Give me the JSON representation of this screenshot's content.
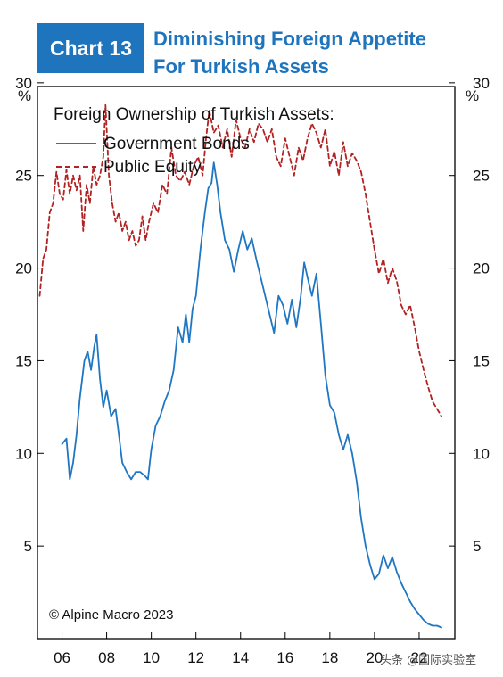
{
  "header": {
    "badge": "Chart 13",
    "title_line1": "Diminishing Foreign Appetite",
    "title_line2": "For Turkish Assets"
  },
  "colors": {
    "accent": "#1e74bd",
    "government_bonds": "#1f77c4",
    "public_equity": "#b22222"
  },
  "watermark": "头条 @国际实验室",
  "chart_data": {
    "type": "line",
    "title": "Foreign Ownership of Turkish Assets:",
    "unit_left": "%",
    "unit_right": "%",
    "xlabel": "",
    "ylabel": "",
    "xlim": [
      2004.9,
      2023.6
    ],
    "ylim": [
      0,
      29.8
    ],
    "y_ticks": [
      5,
      10,
      15,
      20,
      25,
      30
    ],
    "x_ticks": [
      {
        "value": 2006,
        "label": "06"
      },
      {
        "value": 2008,
        "label": "08"
      },
      {
        "value": 2010,
        "label": "10"
      },
      {
        "value": 2012,
        "label": "12"
      },
      {
        "value": 2014,
        "label": "14"
      },
      {
        "value": 2016,
        "label": "16"
      },
      {
        "value": 2018,
        "label": "18"
      },
      {
        "value": 2020,
        "label": "20"
      },
      {
        "value": 2022,
        "label": "22"
      }
    ],
    "legend_position": "top-left",
    "grid": false,
    "annotation": "© Alpine Macro 2023",
    "series": [
      {
        "name": "Government Bonds",
        "style": "solid",
        "x": [
          2006.0,
          2006.2,
          2006.35,
          2006.5,
          2006.65,
          2006.8,
          2007.0,
          2007.15,
          2007.3,
          2007.45,
          2007.55,
          2007.7,
          2007.85,
          2008.0,
          2008.2,
          2008.4,
          2008.55,
          2008.7,
          2008.9,
          2009.1,
          2009.3,
          2009.5,
          2009.7,
          2009.85,
          2010.0,
          2010.2,
          2010.4,
          2010.6,
          2010.8,
          2011.0,
          2011.2,
          2011.4,
          2011.55,
          2011.7,
          2011.85,
          2012.0,
          2012.2,
          2012.4,
          2012.55,
          2012.7,
          2012.8,
          2012.95,
          2013.1,
          2013.3,
          2013.5,
          2013.7,
          2013.9,
          2014.1,
          2014.3,
          2014.5,
          2014.7,
          2014.9,
          2015.1,
          2015.3,
          2015.5,
          2015.7,
          2015.9,
          2016.1,
          2016.3,
          2016.5,
          2016.7,
          2016.85,
          2017.0,
          2017.2,
          2017.4,
          2017.6,
          2017.8,
          2018.0,
          2018.2,
          2018.4,
          2018.6,
          2018.8,
          2019.0,
          2019.2,
          2019.4,
          2019.6,
          2019.8,
          2020.0,
          2020.2,
          2020.4,
          2020.6,
          2020.8,
          2021.0,
          2021.2,
          2021.4,
          2021.6,
          2021.8,
          2022.0,
          2022.2,
          2022.4,
          2022.6,
          2022.8,
          2023.0
        ],
        "values": [
          10.5,
          10.8,
          8.6,
          9.5,
          11.0,
          13.0,
          15.0,
          15.5,
          14.5,
          15.8,
          16.4,
          14.0,
          12.5,
          13.4,
          12.0,
          12.4,
          11.0,
          9.5,
          9.0,
          8.6,
          9.0,
          9.0,
          8.8,
          8.6,
          10.2,
          11.5,
          12.0,
          12.8,
          13.4,
          14.5,
          16.8,
          16.0,
          17.5,
          16.0,
          17.8,
          18.5,
          21.0,
          23.0,
          24.3,
          24.6,
          25.7,
          24.5,
          23.0,
          21.5,
          21.0,
          19.8,
          21.0,
          22.0,
          21.0,
          21.6,
          20.5,
          19.5,
          18.5,
          17.5,
          16.5,
          18.5,
          18.0,
          17.0,
          18.3,
          16.8,
          18.5,
          20.3,
          19.5,
          18.5,
          19.7,
          17.0,
          14.2,
          12.6,
          12.2,
          11.0,
          10.2,
          11.0,
          10.0,
          8.5,
          6.5,
          5.0,
          4.0,
          3.2,
          3.5,
          4.5,
          3.8,
          4.4,
          3.6,
          3.0,
          2.5,
          2.0,
          1.6,
          1.3,
          1.0,
          0.8,
          0.7,
          0.7,
          0.6
        ]
      },
      {
        "name": "Public Equity",
        "style": "dashed",
        "x": [
          2005.0,
          2005.15,
          2005.3,
          2005.45,
          2005.6,
          2005.75,
          2005.9,
          2006.05,
          2006.2,
          2006.35,
          2006.5,
          2006.65,
          2006.8,
          2006.95,
          2007.1,
          2007.25,
          2007.4,
          2007.55,
          2007.7,
          2007.85,
          2007.95,
          2008.1,
          2008.25,
          2008.4,
          2008.55,
          2008.7,
          2008.85,
          2009.0,
          2009.15,
          2009.3,
          2009.45,
          2009.6,
          2009.75,
          2009.9,
          2010.1,
          2010.3,
          2010.5,
          2010.7,
          2010.9,
          2011.1,
          2011.3,
          2011.5,
          2011.7,
          2011.9,
          2012.1,
          2012.3,
          2012.45,
          2012.6,
          2012.8,
          2013.0,
          2013.2,
          2013.4,
          2013.6,
          2013.8,
          2014.0,
          2014.2,
          2014.4,
          2014.6,
          2014.8,
          2015.0,
          2015.2,
          2015.4,
          2015.6,
          2015.8,
          2016.0,
          2016.2,
          2016.4,
          2016.6,
          2016.8,
          2017.0,
          2017.2,
          2017.4,
          2017.6,
          2017.8,
          2018.0,
          2018.2,
          2018.4,
          2018.6,
          2018.8,
          2019.0,
          2019.2,
          2019.4,
          2019.6,
          2019.8,
          2020.0,
          2020.2,
          2020.4,
          2020.6,
          2020.8,
          2021.0,
          2021.2,
          2021.4,
          2021.6,
          2021.8,
          2022.0,
          2022.2,
          2022.4,
          2022.6,
          2022.8,
          2023.0
        ],
        "values": [
          18.5,
          20.5,
          21.0,
          23.0,
          23.5,
          25.2,
          24.0,
          23.7,
          25.3,
          24.0,
          25.0,
          24.2,
          25.0,
          22.0,
          24.5,
          23.5,
          25.5,
          24.5,
          25.0,
          26.0,
          28.8,
          25.0,
          23.5,
          22.5,
          23.0,
          22.0,
          22.5,
          21.5,
          22.0,
          21.2,
          21.5,
          22.8,
          21.5,
          22.5,
          23.5,
          23.0,
          24.5,
          24.0,
          26.5,
          25.0,
          24.7,
          25.2,
          24.5,
          25.5,
          26.0,
          25.0,
          27.0,
          28.5,
          27.3,
          27.7,
          26.5,
          27.5,
          26.0,
          28.0,
          27.0,
          26.5,
          27.5,
          26.8,
          27.8,
          27.5,
          26.8,
          27.5,
          26.0,
          25.5,
          27.0,
          26.0,
          25.0,
          26.5,
          25.8,
          27.0,
          27.8,
          27.3,
          26.5,
          27.5,
          25.5,
          26.3,
          25.0,
          26.8,
          25.5,
          26.2,
          25.8,
          25.2,
          24.0,
          22.5,
          21.0,
          19.7,
          20.5,
          19.2,
          20.0,
          19.3,
          18.0,
          17.5,
          18.0,
          16.8,
          15.5,
          14.5,
          13.6,
          12.8,
          12.4,
          12.0
        ]
      }
    ]
  }
}
